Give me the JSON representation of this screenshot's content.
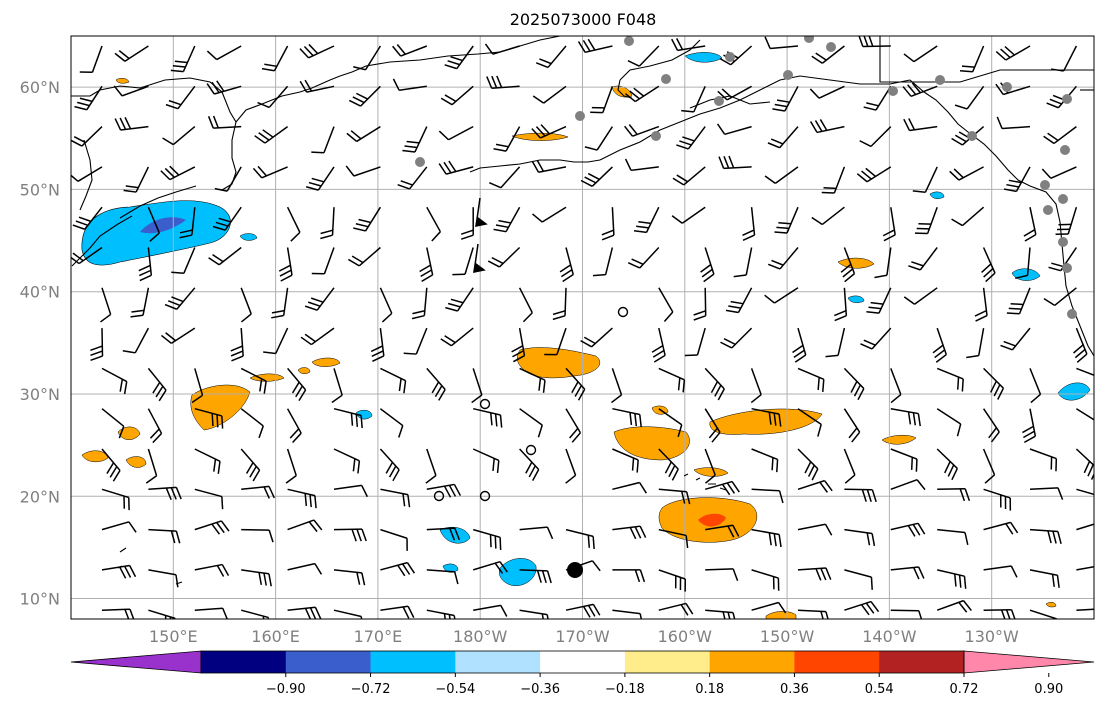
{
  "title": "2025073000 F048",
  "lat_labels": [
    "10°N",
    "20°N",
    "30°N",
    "40°N",
    "50°N",
    "60°N"
  ],
  "lat_values": [
    10,
    20,
    30,
    40,
    50,
    60
  ],
  "lon_labels": [
    "150°E",
    "160°E",
    "170°E",
    "180°W",
    "170°W",
    "160°W",
    "150°W",
    "140°W",
    "130°W"
  ],
  "lon_values": [
    150,
    160,
    170,
    180,
    190,
    200,
    210,
    220,
    230
  ],
  "extent": {
    "lon_min": 140,
    "lon_max": 240,
    "lat_min": 8,
    "lat_max": 65
  },
  "colorbar": {
    "colors": [
      "#9932CC",
      "#000080",
      "#3A5FCD",
      "#00BFFF",
      "#B0E2FF",
      "#FFFFFF",
      "#FFEC8B",
      "#FFA500",
      "#FF4500",
      "#B22222",
      "#FF88AA"
    ],
    "tick_labels": [
      "−0.90",
      "−0.72",
      "−0.54",
      "−0.36",
      "−0.18",
      "0.18",
      "0.36",
      "0.54",
      "0.72",
      "0.90"
    ]
  },
  "feature_colors": {
    "positive_fill": "#FFA500",
    "positive_core": "#FF4500",
    "positive_edge": "#FFEC8B",
    "negative_fill": "#00BFFF",
    "negative_edge": "#B0E2FF",
    "negative_core": "#3A5FCD",
    "station_dots": "#808080"
  }
}
